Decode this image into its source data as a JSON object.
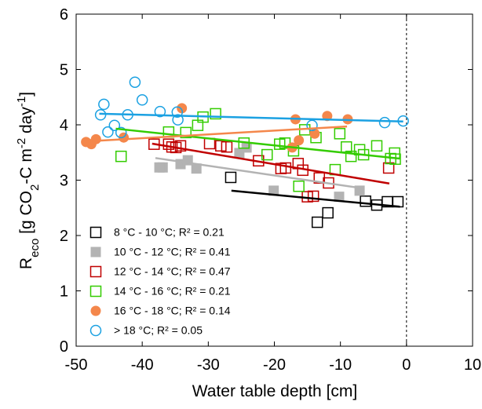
{
  "chart_data": {
    "type": "scatter",
    "x_label": "Water table depth [cm]",
    "y_label": [
      "R",
      "eco",
      " [g CO",
      "2",
      "-C m",
      "-2",
      " day",
      "-1",
      "]"
    ],
    "xlim": [
      -50,
      10
    ],
    "ylim": [
      0,
      6
    ],
    "xticks": [
      -50,
      -40,
      -30,
      -20,
      -10,
      0,
      10
    ],
    "yticks": [
      0,
      1,
      2,
      3,
      4,
      5,
      6
    ],
    "vline": 0,
    "legend": "lower left",
    "series": [
      {
        "name": "8 °C - 10 °C; R² = 0.21",
        "color": "#000000",
        "marker": "square-open",
        "x": [
          -2.9,
          -6.2,
          -4.5,
          -1.3,
          -11.9,
          -13.5,
          -26.6
        ],
        "values": [
          2.61,
          2.62,
          2.55,
          2.61,
          2.41,
          2.24,
          3.05
        ],
        "fit": {
          "x": [
            -26.5,
            -1
          ],
          "y": [
            2.81,
            2.52
          ]
        }
      },
      {
        "name": "10 °C - 12 °C; R² = 0.41",
        "color": "#b3b3b3",
        "marker": "square",
        "x": [
          -36.9,
          -37.4,
          -34.2,
          -33.1,
          -31.8,
          -24.2,
          -25.3,
          -20.1,
          -10.2,
          -7.1
        ],
        "values": [
          3.23,
          3.23,
          3.29,
          3.36,
          3.21,
          3.59,
          3.49,
          2.81,
          2.7,
          2.81
        ],
        "fit": {
          "x": [
            -38,
            -6.5
          ],
          "y": [
            3.4,
            2.85
          ]
        }
      },
      {
        "name": "12 °C - 14 °C; R² = 0.47",
        "color": "#c00000",
        "marker": "square-open",
        "x": [
          -38.2,
          -36,
          -35.5,
          -34.9,
          -34.2,
          -29.8,
          -28.1,
          -27.2,
          -22.4,
          -19,
          -18.3,
          -16.4,
          -15.7,
          -14.1,
          -15,
          -13.2,
          -11.8,
          -2.7
        ],
        "values": [
          3.65,
          3.65,
          3.6,
          3.59,
          3.62,
          3.66,
          3.62,
          3.6,
          3.35,
          3.21,
          3.22,
          3.3,
          3.18,
          2.71,
          2.7,
          3.04,
          2.95,
          3.22
        ],
        "fit": {
          "x": [
            -38.5,
            -2.6
          ],
          "y": [
            3.66,
            2.94
          ]
        }
      },
      {
        "name": "14 °C - 16 °C; R² = 0.21",
        "color": "#33cc00",
        "marker": "square-open",
        "x": [
          -43.2,
          -36,
          -33.4,
          -31.6,
          -30.8,
          -28.9,
          -24.6,
          -21.1,
          -19.2,
          -18.4,
          -17.1,
          -16.3,
          -15.4,
          -13.7,
          -10.8,
          -10.1,
          -9.1,
          -8.4,
          -7.1,
          -6.5,
          -4.5,
          -2.4,
          -1.8,
          -1.7
        ],
        "values": [
          3.43,
          3.87,
          3.86,
          3.99,
          4.14,
          4.2,
          3.67,
          3.46,
          3.65,
          3.67,
          3.53,
          2.89,
          3.91,
          3.77,
          3.19,
          3.84,
          3.6,
          3.43,
          3.55,
          3.46,
          3.62,
          3.39,
          3.49,
          3.38
        ],
        "fit": {
          "x": [
            -44,
            -1
          ],
          "y": [
            3.93,
            3.39
          ]
        }
      },
      {
        "name": "16 °C - 18 °C; R² = 0.14",
        "color": "#f4874b",
        "marker": "circle",
        "x": [
          -48.5,
          -47.7,
          -47,
          -42.8,
          -34,
          -17.3,
          -16.3,
          -16.8,
          -13.9,
          -12,
          -8.9
        ],
        "values": [
          3.69,
          3.65,
          3.74,
          3.77,
          4.3,
          3.59,
          3.72,
          4.1,
          3.84,
          4.16,
          4.1
        ],
        "fit": {
          "x": [
            -48.5,
            -9
          ],
          "y": [
            3.7,
            3.97
          ]
        }
      },
      {
        "name": "> 18 °C; R² = 0.05",
        "color": "#1ba1e2",
        "marker": "circle-open",
        "x": [
          -46.3,
          -45.8,
          -45.2,
          -44.2,
          -43.2,
          -42.2,
          -41.1,
          -40,
          -37.3,
          -34.7,
          -34.6,
          -14.3,
          -3.3,
          -0.5
        ],
        "values": [
          4.18,
          4.37,
          3.87,
          3.99,
          3.86,
          4.18,
          4.77,
          4.45,
          4.24,
          4.23,
          4.09,
          3.99,
          4.04,
          4.07
        ],
        "fit": {
          "x": [
            -46.5,
            -0.5
          ],
          "y": [
            4.2,
            4.06
          ]
        }
      }
    ]
  }
}
